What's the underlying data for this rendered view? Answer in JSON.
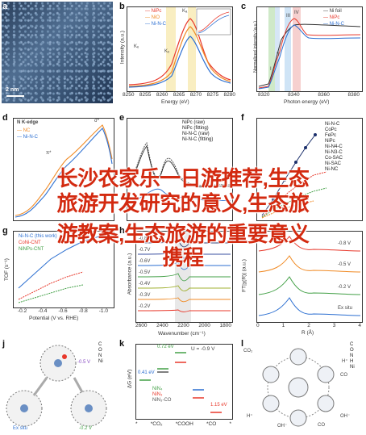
{
  "panels": {
    "a": {
      "label": "a",
      "scalebar": "2 nm"
    },
    "b": {
      "label": "b",
      "legend": [
        "NiPc",
        "NiO",
        "Ni-N-C"
      ],
      "peak_label": "Kₐ",
      "k_labels": [
        "Kₑ",
        "Kₓ"
      ],
      "xlabel": "Energy (eV)",
      "ylabel": "Intensity (a.u.)",
      "ticks": [
        "8250",
        "8255",
        "8260",
        "8265",
        "8270",
        "8275",
        "8280"
      ]
    },
    "c": {
      "label": "c",
      "legend": [
        "Ni foil",
        "NiPc",
        "Ni-N-C"
      ],
      "xlabel": "Photon energy (eV)",
      "ylabel": "Normalized intensity (a.u.)",
      "ticks": [
        "8320",
        "8340",
        "8360",
        "8380"
      ],
      "roman": [
        "I",
        "II",
        "III",
        "IV"
      ]
    },
    "d": {
      "label": "d",
      "title": "N K-edge",
      "legend": [
        "NC",
        "Ni-N-C"
      ],
      "xlabel": "Energy (eV)",
      "ylabel": "Intensity",
      "sigma": "σ*",
      "pi": "π*"
    },
    "e": {
      "label": "e",
      "legend": [
        "NiPc (raw)",
        "NiPc (fitting)",
        "Ni-N-C (raw)",
        "Ni-N-C (fitting)"
      ]
    },
    "f": {
      "label": "f",
      "legend": [
        "Ni-N-C",
        "CoPc",
        "FePc",
        "NiPc",
        "Ni-N4-C",
        "Ni-N3-C",
        "Co-SAC",
        "Ni-SAC",
        "Ni-NC"
      ]
    },
    "g": {
      "label": "g",
      "legend": [
        "Ni-N-C (this work)",
        "CoNi-CNT",
        "NiNPs-CNT"
      ],
      "xlabel": "Potential (V vs. RHE)",
      "ylabel": "TOF (s⁻¹)",
      "xticks": [
        "-0.2",
        "-0.4",
        "-0.6",
        "-0.8",
        "-1.0"
      ]
    },
    "h": {
      "label": "h",
      "xlabel": "Wavenumber (cm⁻¹)",
      "ylabel": "Absorbance (a.u.)",
      "xticks": [
        "2600",
        "2400",
        "2200",
        "2000",
        "1800"
      ],
      "potentials": [
        "-0.8V",
        "-0.7V",
        "-0.6V",
        "-0.5V",
        "-0.4V",
        "-0.3V",
        "-0.2V"
      ]
    },
    "i": {
      "label": "i",
      "xlabel": "R (Å)",
      "ylabel": "FT|χ(R)| (a.u.)",
      "xticks": [
        "0",
        "1",
        "2",
        "3",
        "4"
      ],
      "curves": [
        "-0.8 V",
        "-0.5 V",
        "-0.2 V",
        "Ex situ"
      ]
    },
    "j": {
      "label": "j",
      "states": [
        "Ex situ",
        "-0.5 V",
        "-0.2 V"
      ],
      "atoms": [
        "C",
        "O",
        "N",
        "Ni"
      ]
    },
    "k": {
      "label": "k",
      "title": "U = -0.9 V",
      "ylabel": "ΔG (eV)",
      "values": [
        "0.41 eV",
        "0.72 eV",
        "1.15 eV"
      ],
      "legend": [
        "NiN₄",
        "NiN₃",
        "NiN₃-CO"
      ],
      "xticks": [
        "*",
        "*CO₂",
        "*COOH",
        "*CO",
        "*"
      ]
    },
    "l": {
      "label": "l",
      "species": [
        "CO₂",
        "H⁺",
        "OH⁻",
        "CO",
        "OH⁻",
        "CO",
        "H⁺"
      ],
      "atoms": [
        "C",
        "O",
        "N",
        "H",
        "Ni"
      ]
    }
  },
  "overlay": {
    "line1": "长沙农家乐一日游推荐,生态",
    "line2": "旅游开发研究的意义,生态旅",
    "line3": "游教案,生态旅游的重要意义",
    "line4": "携程"
  },
  "colors": {
    "red": "#e8382b",
    "blue": "#2c6fd1",
    "green": "#43a047",
    "orange": "#f08a24",
    "navy": "#1b2f6b",
    "overlay": "#d32a10"
  }
}
